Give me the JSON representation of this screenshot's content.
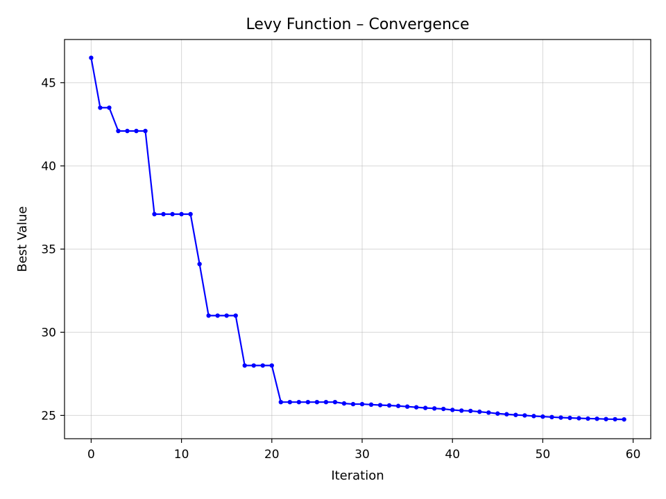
{
  "chart_data": {
    "type": "line",
    "title": "Levy Function – Convergence",
    "xlabel": "Iteration",
    "ylabel": "Best Value",
    "xlim": [
      -2.95,
      61.95
    ],
    "ylim": [
      23.6,
      47.6
    ],
    "xticks": [
      0,
      10,
      20,
      30,
      40,
      50,
      60
    ],
    "yticks": [
      25,
      30,
      35,
      40,
      45
    ],
    "grid": true,
    "legend": "none",
    "line_color": "#0000ff",
    "series": [
      {
        "x": [
          0,
          1,
          2,
          3,
          4,
          5,
          6,
          7,
          8,
          9,
          10,
          11,
          12,
          13,
          14,
          15,
          16,
          17,
          18,
          19,
          20,
          21,
          22,
          23,
          24,
          25,
          26,
          27,
          28,
          29,
          30,
          31,
          32,
          33,
          34,
          35,
          36,
          37,
          38,
          39,
          40,
          41,
          42,
          43,
          44,
          45,
          46,
          47,
          48,
          49,
          50,
          51,
          52,
          53,
          54,
          55,
          56,
          57,
          58,
          59
        ],
        "values": [
          46.5,
          43.5,
          43.5,
          42.1,
          42.1,
          42.1,
          42.1,
          37.1,
          37.1,
          37.1,
          37.1,
          37.1,
          34.1,
          31.0,
          31.0,
          31.0,
          31.0,
          28.0,
          28.0,
          28.0,
          28.0,
          25.8,
          25.8,
          25.8,
          25.8,
          25.8,
          25.8,
          25.8,
          25.72,
          25.68,
          25.68,
          25.65,
          25.62,
          25.6,
          25.57,
          25.53,
          25.49,
          25.45,
          25.42,
          25.39,
          25.33,
          25.29,
          25.27,
          25.22,
          25.17,
          25.11,
          25.07,
          25.03,
          25.0,
          24.96,
          24.93,
          24.9,
          24.87,
          24.85,
          24.83,
          24.81,
          24.8,
          24.78,
          24.77,
          24.76
        ]
      }
    ]
  }
}
